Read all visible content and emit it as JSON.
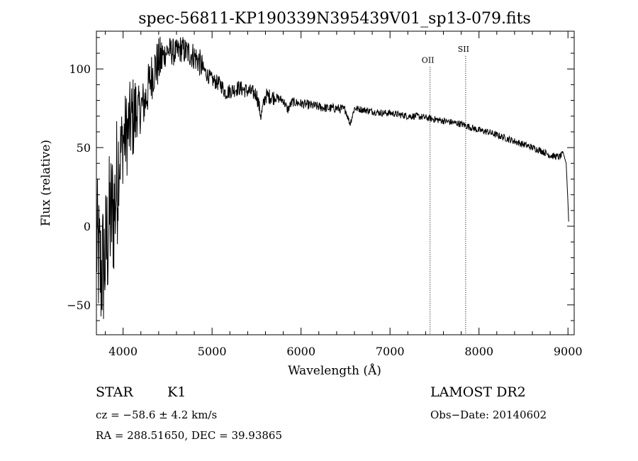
{
  "chart_data": {
    "type": "line",
    "title": "spec-56811-KP190339N395439V01_sp13-079.fits",
    "xlabel": "Wavelength (Å)",
    "ylabel": "Flux (relative)",
    "xlim": [
      3700,
      9070
    ],
    "ylim": [
      -69,
      124
    ],
    "x_ticks": [
      4000,
      5000,
      6000,
      7000,
      8000,
      9000
    ],
    "y_ticks": [
      -50,
      0,
      50,
      100
    ],
    "grid": false,
    "series": [
      {
        "x": [
          3700,
          3750,
          3800,
          3850,
          3900,
          3950,
          4000,
          4050,
          4100,
          4150,
          4200,
          4250,
          4300,
          4350,
          4400,
          4450,
          4500,
          4550,
          4600,
          4650,
          4700,
          4750,
          4800,
          4850,
          4900,
          4950,
          5000,
          5100,
          5150,
          5200,
          5300,
          5400,
          5500,
          5550,
          5600,
          5700,
          5800,
          5850,
          5900,
          6000,
          6100,
          6200,
          6300,
          6400,
          6500,
          6550,
          6600,
          6700,
          6800,
          6900,
          7000,
          7100,
          7200,
          7300,
          7400,
          7500,
          7600,
          7700,
          7800,
          7900,
          8000,
          8100,
          8200,
          8300,
          8400,
          8500,
          8600,
          8700,
          8800,
          8900,
          8950,
          8980,
          9000,
          9010
        ],
        "y": [
          -10,
          -30,
          -20,
          5,
          10,
          40,
          55,
          60,
          68,
          72,
          75,
          80,
          92,
          100,
          104,
          108,
          112,
          111,
          110,
          113,
          111,
          110,
          108,
          105,
          100,
          96,
          93,
          90,
          85,
          86,
          88,
          86,
          84,
          70,
          83,
          82,
          80,
          74,
          79,
          78,
          77,
          76,
          75,
          75,
          74,
          65,
          75,
          74,
          73,
          72,
          72,
          71,
          70,
          70,
          69,
          68,
          67,
          66,
          65,
          63,
          61,
          60,
          58,
          56,
          54,
          52,
          50,
          48,
          45,
          44,
          46,
          40,
          15,
          0
        ]
      }
    ],
    "annotations": [
      {
        "label": "OII",
        "x": 7450,
        "label_y": 104
      },
      {
        "label": "SII",
        "x": 7850,
        "label_y": 111
      }
    ]
  },
  "footer": {
    "object_class": "STAR",
    "subclass": "K1",
    "survey": "LAMOST DR2",
    "cz": "cz = −58.6 ± 4.2 km/s",
    "obs_date": "Obs−Date: 20140602",
    "coords": "RA = 288.51650, DEC =  39.93865"
  }
}
